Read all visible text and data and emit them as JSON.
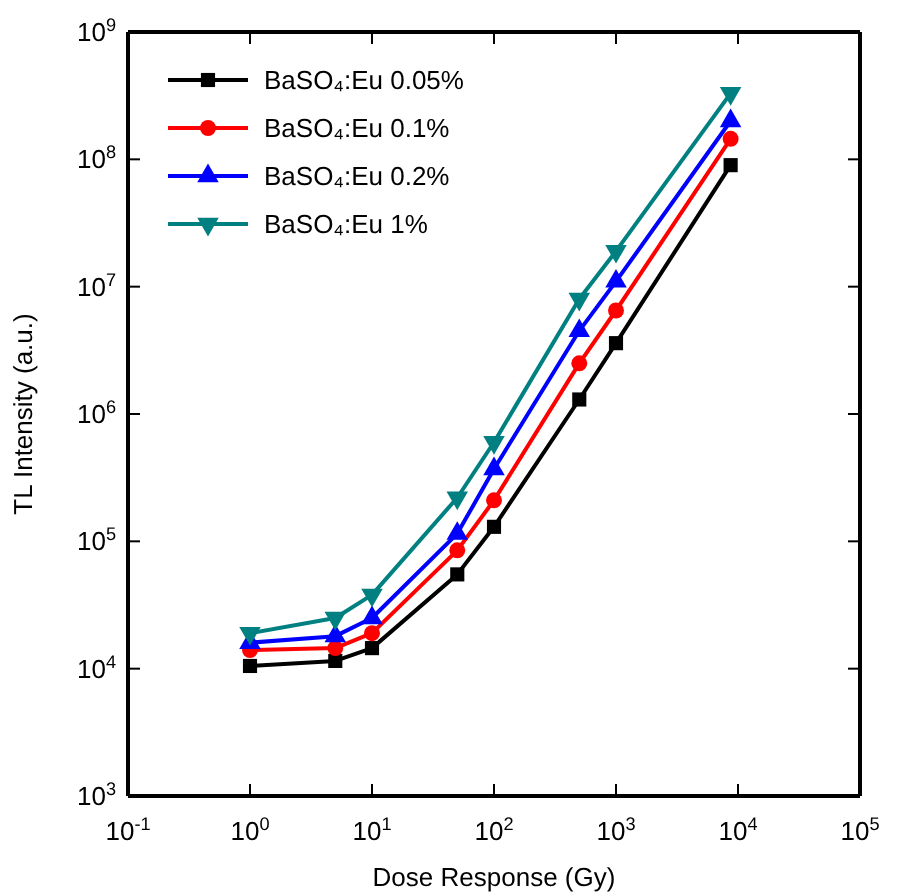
{
  "chart_data": {
    "type": "line",
    "xlabel": "Dose Response (Gy)",
    "ylabel": "TL Intensity (a.u.)",
    "log": "xy",
    "x": [
      1,
      5,
      10,
      50,
      100,
      500,
      1000,
      8700
    ],
    "xlim": [
      0.1,
      100000
    ],
    "ylim": [
      1000,
      1000000000
    ],
    "xticks": [
      {
        "value": 0.1,
        "label": "10$^{-1}$"
      },
      {
        "value": 1,
        "label": "10$^{0}$"
      },
      {
        "value": 10,
        "label": "10$^{1}$"
      },
      {
        "value": 100,
        "label": "10$^{2}$"
      },
      {
        "value": 1000,
        "label": "10$^{3}$"
      },
      {
        "value": 10000,
        "label": "10$^{4}$"
      },
      {
        "value": 100000,
        "label": "10$^{5}$"
      }
    ],
    "yticks": [
      {
        "value": 1000,
        "label": "10$^{3}$"
      },
      {
        "value": 10000,
        "label": "10$^{4}$"
      },
      {
        "value": 100000,
        "label": "10$^{5}$"
      },
      {
        "value": 1000000,
        "label": "10$^{6}$"
      },
      {
        "value": 10000000,
        "label": "10$^{7}$"
      },
      {
        "value": 100000000,
        "label": "10$^{8}$"
      },
      {
        "value": 1000000000,
        "label": "10$^{9}$"
      }
    ],
    "grid": false,
    "legend": "top left",
    "line_style": "solid",
    "series": [
      {
        "name": "BaSO₄:Eu 0.05%",
        "color": "#000000",
        "marker": "square",
        "values": [
          10500,
          11500,
          14500,
          55000,
          130000,
          1300000,
          3600000,
          90000000
        ]
      },
      {
        "name": "BaSO₄:Eu 0.1%",
        "color": "#ff0000",
        "marker": "circle",
        "values": [
          14000,
          14500,
          19000,
          85000,
          210000,
          2500000,
          6500000,
          145000000
        ]
      },
      {
        "name": "BaSO₄:Eu 0.2%",
        "color": "#0000ff",
        "marker": "triangle",
        "values": [
          16000,
          18000,
          25000,
          115000,
          370000,
          4500000,
          11000000,
          200000000
        ]
      },
      {
        "name": "BaSO₄:Eu 1%",
        "color": "#008080",
        "marker": "triangle-down",
        "values": [
          19000,
          25000,
          38000,
          220000,
          600000,
          8000000,
          19000000,
          330000000
        ]
      }
    ]
  }
}
